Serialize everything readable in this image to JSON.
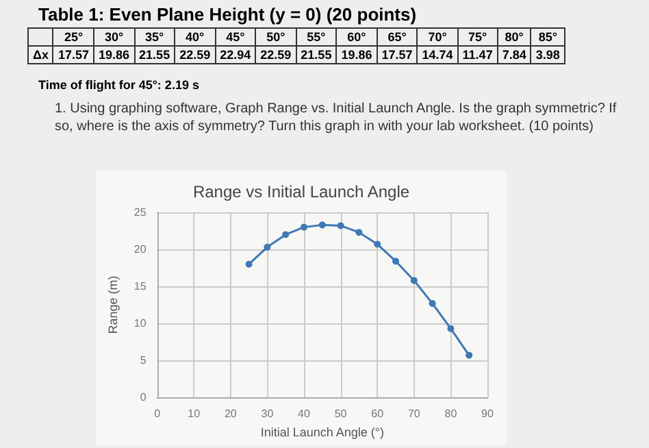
{
  "chart_data": {
    "type": "line",
    "title": "Range vs Initial Launch Angle",
    "xlabel": "Initial Launch Angle (°)",
    "ylabel": "Range (m)",
    "x": [
      25,
      30,
      35,
      40,
      45,
      50,
      55,
      60,
      65,
      70,
      75,
      80,
      85
    ],
    "series": [
      {
        "color": "#3f78b5",
        "values": [
          18.0,
          20.3,
          22.0,
          23.0,
          23.3,
          23.2,
          22.3,
          20.7,
          18.4,
          15.8,
          12.7,
          9.3,
          5.7
        ]
      }
    ],
    "xlim": [
      0,
      90
    ],
    "xticks": [
      0,
      10,
      20,
      30,
      40,
      50,
      60,
      70,
      80,
      90
    ],
    "ylim": [
      0,
      25
    ],
    "yticks": [
      0,
      5,
      10,
      15,
      20,
      25
    ],
    "grid": true,
    "marker": "circle",
    "line_style": "solid",
    "annotations": [
      "Table 1: Even Plane    Height (y = 0) (20 points)",
      "\t25°\t30°\t35°\t40°\t45°\t50°\t55°\t60°\t65°\t70°\t75°\t80°\t85°",
      "Δx\t17.57\t19.86\t21.55\t22.59\t22.94\t22.59\t21.55\t19.86\t17.57\t14.74\t11.47\t7.84\t3.98",
      "Time of flight for 45°: 2.19 s",
      "1. Using graphing software, Graph Range vs. Initial Launch Angle. Is the graph symmetric? If so, where is the axis of symmetry? Turn this graph in with your lab worksheet. (10 points)"
    ]
  }
}
